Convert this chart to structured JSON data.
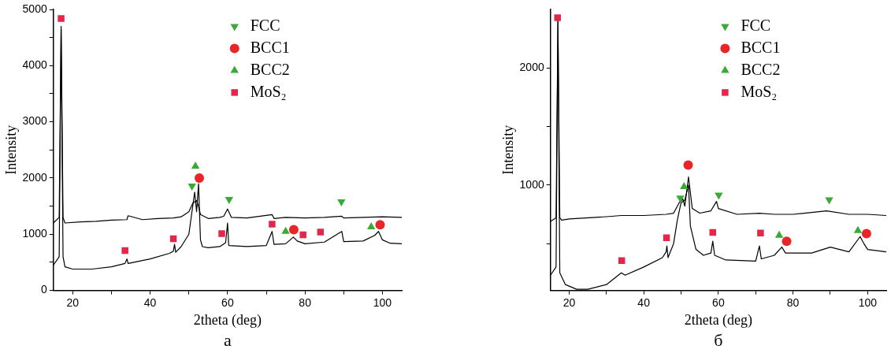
{
  "chart_data": [
    {
      "type": "line",
      "annotations": [
        "a"
      ],
      "xlabel": "2theta (deg)",
      "ylabel": "Intensity",
      "xlim": [
        15,
        105
      ],
      "ylim": [
        0,
        5000
      ],
      "xticks": [
        20,
        {
          "value": 30,
          "label": null
        },
        40,
        {
          "value": 50,
          "label": null
        },
        60,
        {
          "value": 70,
          "label": null
        },
        80,
        {
          "value": 90,
          "label": null
        },
        100
      ],
      "yticks": [
        0,
        {
          "value": 500,
          "label": null
        },
        1000,
        {
          "value": 1500,
          "label": null
        },
        2000,
        {
          "value": 2500,
          "label": null
        },
        3000,
        {
          "value": 3500,
          "label": null
        },
        4000,
        {
          "value": 4500,
          "label": null
        },
        5000
      ],
      "grid": false,
      "legend": "top",
      "series": [
        {
          "type": "line",
          "color": "#000000",
          "marker": "none",
          "x": [
            15,
            16.5,
            17,
            17.5,
            18,
            22,
            26,
            30,
            34,
            34.3,
            38,
            42,
            46,
            48,
            50,
            51,
            52,
            52.5,
            53,
            55,
            58,
            59,
            60,
            61,
            65,
            71.5,
            72,
            75,
            80,
            85,
            89.5,
            90,
            95,
            100,
            105
          ],
          "values": [
            1200,
            1300,
            4700,
            1300,
            1200,
            1220,
            1230,
            1250,
            1260,
            1330,
            1260,
            1280,
            1290,
            1310,
            1400,
            1550,
            1600,
            1500,
            1350,
            1280,
            1300,
            1320,
            1450,
            1300,
            1290,
            1350,
            1280,
            1300,
            1290,
            1300,
            1320,
            1290,
            1300,
            1310,
            1300
          ]
        },
        {
          "type": "line",
          "color": "#000000",
          "marker": "none",
          "x": [
            15,
            16.5,
            17,
            17.5,
            18,
            20,
            25,
            30,
            33.5,
            34,
            34.3,
            40,
            45,
            46,
            46.3,
            46.6,
            48,
            50,
            51,
            51.5,
            52,
            52.5,
            53,
            53.5,
            55,
            58,
            59.5,
            60,
            60.3,
            65,
            70,
            71.5,
            72,
            75,
            77,
            78,
            80,
            85,
            89.5,
            90,
            95,
            98,
            99,
            100,
            102,
            105
          ],
          "values": [
            450,
            600,
            4650,
            600,
            420,
            380,
            380,
            420,
            480,
            560,
            480,
            560,
            660,
            700,
            820,
            680,
            780,
            1000,
            1500,
            1750,
            1400,
            1900,
            900,
            780,
            760,
            780,
            850,
            1200,
            800,
            780,
            800,
            1050,
            820,
            830,
            950,
            880,
            830,
            860,
            1050,
            870,
            880,
            980,
            1050,
            900,
            840,
            830
          ]
        },
        {
          "type": "scatter",
          "name": "FCC",
          "color": "#3aa935",
          "marker": "triangle-down",
          "x": [
            50.8,
            60.4,
            89.4
          ],
          "values": [
            1860,
            1620,
            1580
          ]
        },
        {
          "type": "scatter",
          "name": "BCC1",
          "color": "#e8262a",
          "marker": "circle",
          "x": [
            52.7,
            77.1,
            99.4
          ],
          "values": [
            2000,
            1080,
            1170
          ]
        },
        {
          "type": "scatter",
          "name": "BCC2",
          "color": "#3aa935",
          "marker": "triangle",
          "x": [
            51.7,
            75,
            97.1
          ],
          "values": [
            2210,
            1050,
            1130
          ]
        },
        {
          "type": "scatter",
          "name": "MoS₂",
          "color": "#e3264a",
          "marker": "square",
          "x": [
            17,
            33.5,
            46,
            58.5,
            71.5,
            79.5,
            84
          ],
          "values": [
            4840,
            710,
            920,
            1010,
            1180,
            990,
            1040
          ]
        }
      ]
    },
    {
      "type": "line",
      "annotations": [
        "б"
      ],
      "xlabel": "2theta (deg)",
      "ylabel": "Intensity",
      "xlim": [
        15,
        105
      ],
      "ylim": [
        100,
        2500
      ],
      "xticks": [
        20,
        {
          "value": 30,
          "label": null
        },
        40,
        {
          "value": 50,
          "label": null
        },
        60,
        {
          "value": 70,
          "label": null
        },
        80,
        {
          "value": 90,
          "label": null
        },
        100
      ],
      "yticks": [
        {
          "value": 500,
          "label": null
        },
        1000,
        {
          "value": 1500,
          "label": null
        },
        2000
      ],
      "grid": false,
      "legend": "top",
      "series": [
        {
          "type": "line",
          "color": "#000000",
          "marker": "none",
          "x": [
            15,
            16.5,
            17,
            17.5,
            18,
            20,
            30,
            34,
            40,
            46,
            48,
            49.5,
            50.5,
            51,
            52,
            53,
            55,
            58,
            59.5,
            60,
            65,
            71,
            75,
            80,
            89,
            95,
            100,
            105
          ],
          "values": [
            690,
            720,
            2400,
            720,
            700,
            710,
            730,
            740,
            740,
            750,
            760,
            850,
            880,
            820,
            1070,
            800,
            760,
            780,
            860,
            800,
            750,
            760,
            750,
            750,
            780,
            750,
            750,
            740
          ]
        },
        {
          "type": "line",
          "color": "#000000",
          "marker": "none",
          "x": [
            15,
            16.5,
            17,
            17.5,
            19,
            22,
            25,
            30,
            34,
            35,
            40,
            45,
            46,
            46.2,
            46.5,
            48,
            49,
            50,
            51,
            52,
            52.5,
            54,
            56,
            58,
            58.5,
            59,
            62,
            70,
            71,
            71.5,
            75,
            77,
            78,
            85,
            90,
            95,
            98,
            99,
            100,
            105
          ],
          "values": [
            230,
            300,
            2400,
            250,
            150,
            110,
            110,
            150,
            250,
            230,
            300,
            380,
            430,
            480,
            380,
            500,
            700,
            850,
            870,
            1000,
            650,
            450,
            400,
            420,
            520,
            400,
            360,
            350,
            480,
            370,
            400,
            470,
            420,
            420,
            470,
            430,
            560,
            500,
            450,
            430
          ]
        },
        {
          "type": "scatter",
          "name": "FCC",
          "color": "#3aa935",
          "marker": "triangle-down",
          "x": [
            49.8,
            60.1,
            89.7
          ],
          "values": [
            890,
            915,
            875
          ]
        },
        {
          "type": "scatter",
          "name": "BCC1",
          "color": "#e8262a",
          "marker": "circle",
          "x": [
            51.9,
            78.3,
            99.7
          ],
          "values": [
            1170,
            520,
            585
          ]
        },
        {
          "type": "scatter",
          "name": "BCC2",
          "color": "#3aa935",
          "marker": "triangle",
          "x": [
            50.8,
            76.3,
            97.4
          ],
          "values": [
            985,
            570,
            610
          ]
        },
        {
          "type": "scatter",
          "name": "MoS₂",
          "color": "#e3264a",
          "marker": "square",
          "x": [
            16.9,
            34.1,
            46.1,
            58.5,
            71.3
          ],
          "values": [
            2430,
            355,
            550,
            595,
            590
          ]
        }
      ]
    }
  ]
}
